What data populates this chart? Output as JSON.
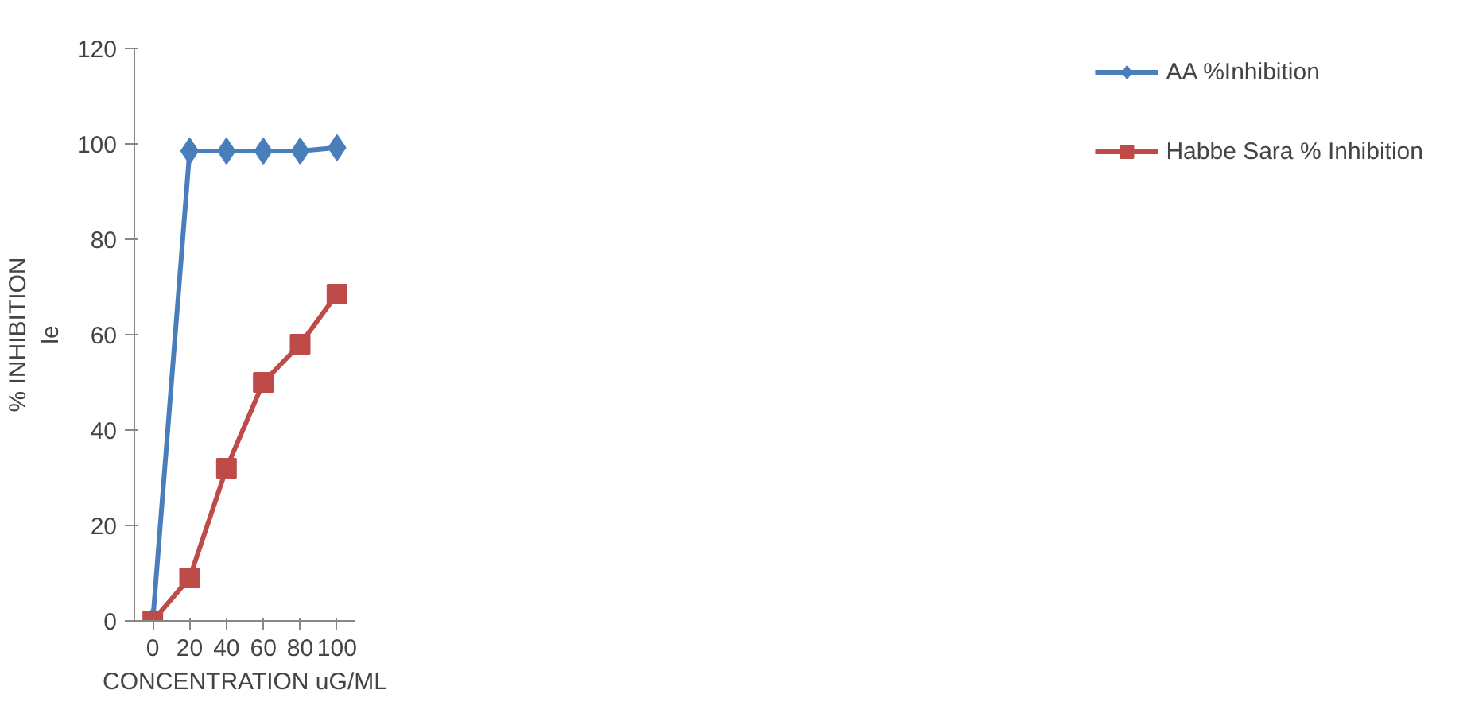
{
  "chart_data": {
    "type": "line",
    "xlabel": "CONCENTRATION uG/ML",
    "ylabel": "% INHIBITION\nle",
    "categories": [
      "0",
      "20",
      "40",
      "60",
      "80",
      "100"
    ],
    "series": [
      {
        "name": "AA %Inhibition",
        "color": "#4a7ebb",
        "marker": "diamond",
        "values": [
          0,
          98.5,
          98.5,
          98.5,
          98.5,
          99.2
        ]
      },
      {
        "name": "Habbe Sara % Inhibition",
        "color": "#be4b48",
        "marker": "square",
        "values": [
          0,
          9,
          32,
          50,
          58,
          68.5
        ]
      }
    ],
    "ylim": [
      0,
      120
    ],
    "yticks": [
      0,
      20,
      40,
      60,
      80,
      100,
      120
    ],
    "grid": false,
    "legend": "right",
    "line_style": "solid"
  }
}
